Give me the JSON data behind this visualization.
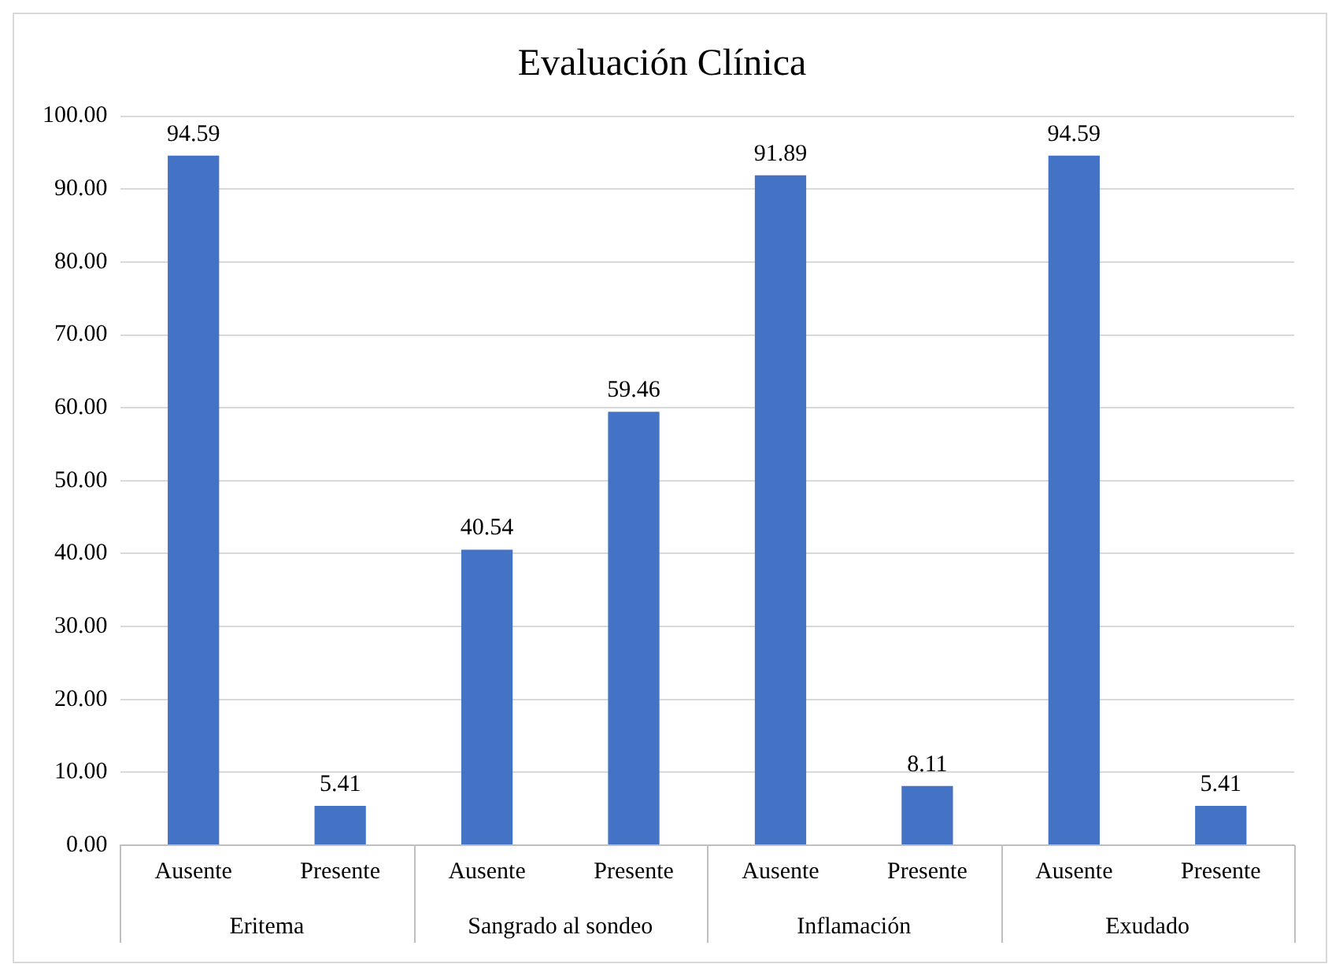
{
  "chart_data": {
    "type": "bar",
    "title": "Evaluación Clínica",
    "categories": [
      "Ausente",
      "Presente",
      "Ausente",
      "Presente",
      "Ausente",
      "Presente",
      "Ausente",
      "Presente"
    ],
    "values": [
      94.59,
      5.41,
      40.54,
      59.46,
      91.89,
      8.11,
      94.59,
      5.41
    ],
    "color": "#4472c4",
    "ylim": [
      0,
      100
    ],
    "yticks": [
      {
        "value": 0,
        "label": "0.00"
      },
      {
        "value": 10,
        "label": "10.00"
      },
      {
        "value": 20,
        "label": "20.00"
      },
      {
        "value": 30,
        "label": "30.00"
      },
      {
        "value": 40,
        "label": "40.00"
      },
      {
        "value": 50,
        "label": "50.00"
      },
      {
        "value": 60,
        "label": "60.00"
      },
      {
        "value": 70,
        "label": "70.00"
      },
      {
        "value": 80,
        "label": "80.00"
      },
      {
        "value": 90,
        "label": "90.00"
      },
      {
        "value": 100,
        "label": "100.00"
      }
    ],
    "annotations": [
      "Eritema",
      "Sangrado al sondeo",
      "Inflamación",
      "Exudado"
    ],
    "grid": "y",
    "data_labels": true,
    "legend": false
  }
}
